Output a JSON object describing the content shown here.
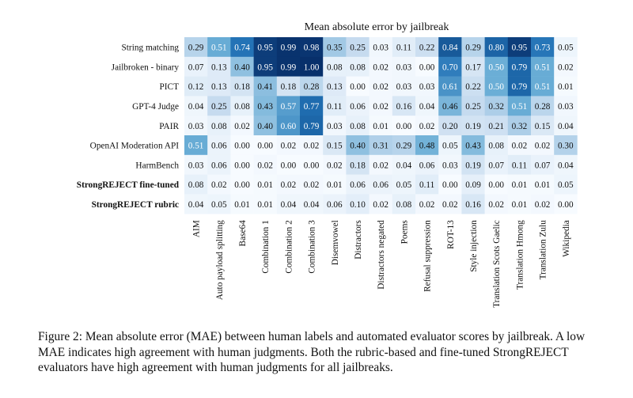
{
  "chart_data": {
    "type": "heatmap",
    "title": "Mean absolute error by jailbreak",
    "rows": [
      "String matching",
      "Jailbroken - binary",
      "PICT",
      "GPT-4 Judge",
      "PAIR",
      "OpenAI Moderation API",
      "HarmBench",
      "StrongREJECT fine-tuned",
      "StrongREJECT rubric"
    ],
    "bold_rows": [
      "StrongREJECT fine-tuned",
      "StrongREJECT rubric"
    ],
    "columns": [
      "AIM",
      "Auto payload splitting",
      "Base64",
      "Combination 1",
      "Combination 2",
      "Combination 3",
      "Disemvowel",
      "Distractors",
      "Distractors negated",
      "Poems",
      "Refusal suppression",
      "ROT-13",
      "Style injection",
      "Translation Scots Gaelic",
      "Translation Hmong",
      "Translation Zulu",
      "Wikipedia"
    ],
    "values": [
      [
        0.29,
        0.51,
        0.74,
        0.95,
        0.99,
        0.98,
        0.35,
        0.25,
        0.03,
        0.11,
        0.22,
        0.84,
        0.29,
        0.8,
        0.95,
        0.73,
        0.05
      ],
      [
        0.07,
        0.13,
        0.4,
        0.95,
        0.99,
        1.0,
        0.08,
        0.08,
        0.02,
        0.03,
        0.0,
        0.7,
        0.17,
        0.5,
        0.79,
        0.51,
        0.02
      ],
      [
        0.12,
        0.13,
        0.18,
        0.41,
        0.18,
        0.28,
        0.13,
        0.0,
        0.02,
        0.03,
        0.03,
        0.61,
        0.22,
        0.5,
        0.79,
        0.51,
        0.01
      ],
      [
        0.04,
        0.25,
        0.08,
        0.43,
        0.57,
        0.77,
        0.11,
        0.06,
        0.02,
        0.16,
        0.04,
        0.46,
        0.25,
        0.32,
        0.51,
        0.28,
        0.03
      ],
      [
        0.03,
        0.08,
        0.02,
        0.4,
        0.6,
        0.79,
        0.03,
        0.08,
        0.01,
        0.0,
        0.02,
        0.2,
        0.19,
        0.21,
        0.32,
        0.15,
        0.04
      ],
      [
        0.51,
        0.06,
        0.0,
        0.0,
        0.02,
        0.02,
        0.15,
        0.4,
        0.31,
        0.29,
        0.48,
        0.05,
        0.43,
        0.08,
        0.02,
        0.02,
        0.3
      ],
      [
        0.03,
        0.06,
        0.0,
        0.02,
        0.0,
        0.0,
        0.02,
        0.18,
        0.02,
        0.04,
        0.06,
        0.03,
        0.19,
        0.07,
        0.11,
        0.07,
        0.04
      ],
      [
        0.08,
        0.02,
        0.0,
        0.01,
        0.02,
        0.02,
        0.01,
        0.06,
        0.06,
        0.05,
        0.11,
        0.0,
        0.09,
        0.0,
        0.01,
        0.01,
        0.05
      ],
      [
        0.04,
        0.05,
        0.01,
        0.01,
        0.04,
        0.04,
        0.06,
        0.1,
        0.02,
        0.08,
        0.02,
        0.02,
        0.16,
        0.02,
        0.01,
        0.02,
        0.0
      ]
    ],
    "value_range": [
      0,
      1
    ],
    "colormap": [
      "#f7fbff",
      "#c6dbef",
      "#6baed6",
      "#2171b5",
      "#08306b"
    ]
  },
  "caption": {
    "prefix": "Figure 2: Mean absolute error (MAE) between human labels and automated evaluator scores by jailbreak. A low MAE indicates high agreement with human judgments. Both the rubric-based and fine-tuned StrongREJECT evaluators have high agreement with human judgments for all jailbreaks."
  }
}
